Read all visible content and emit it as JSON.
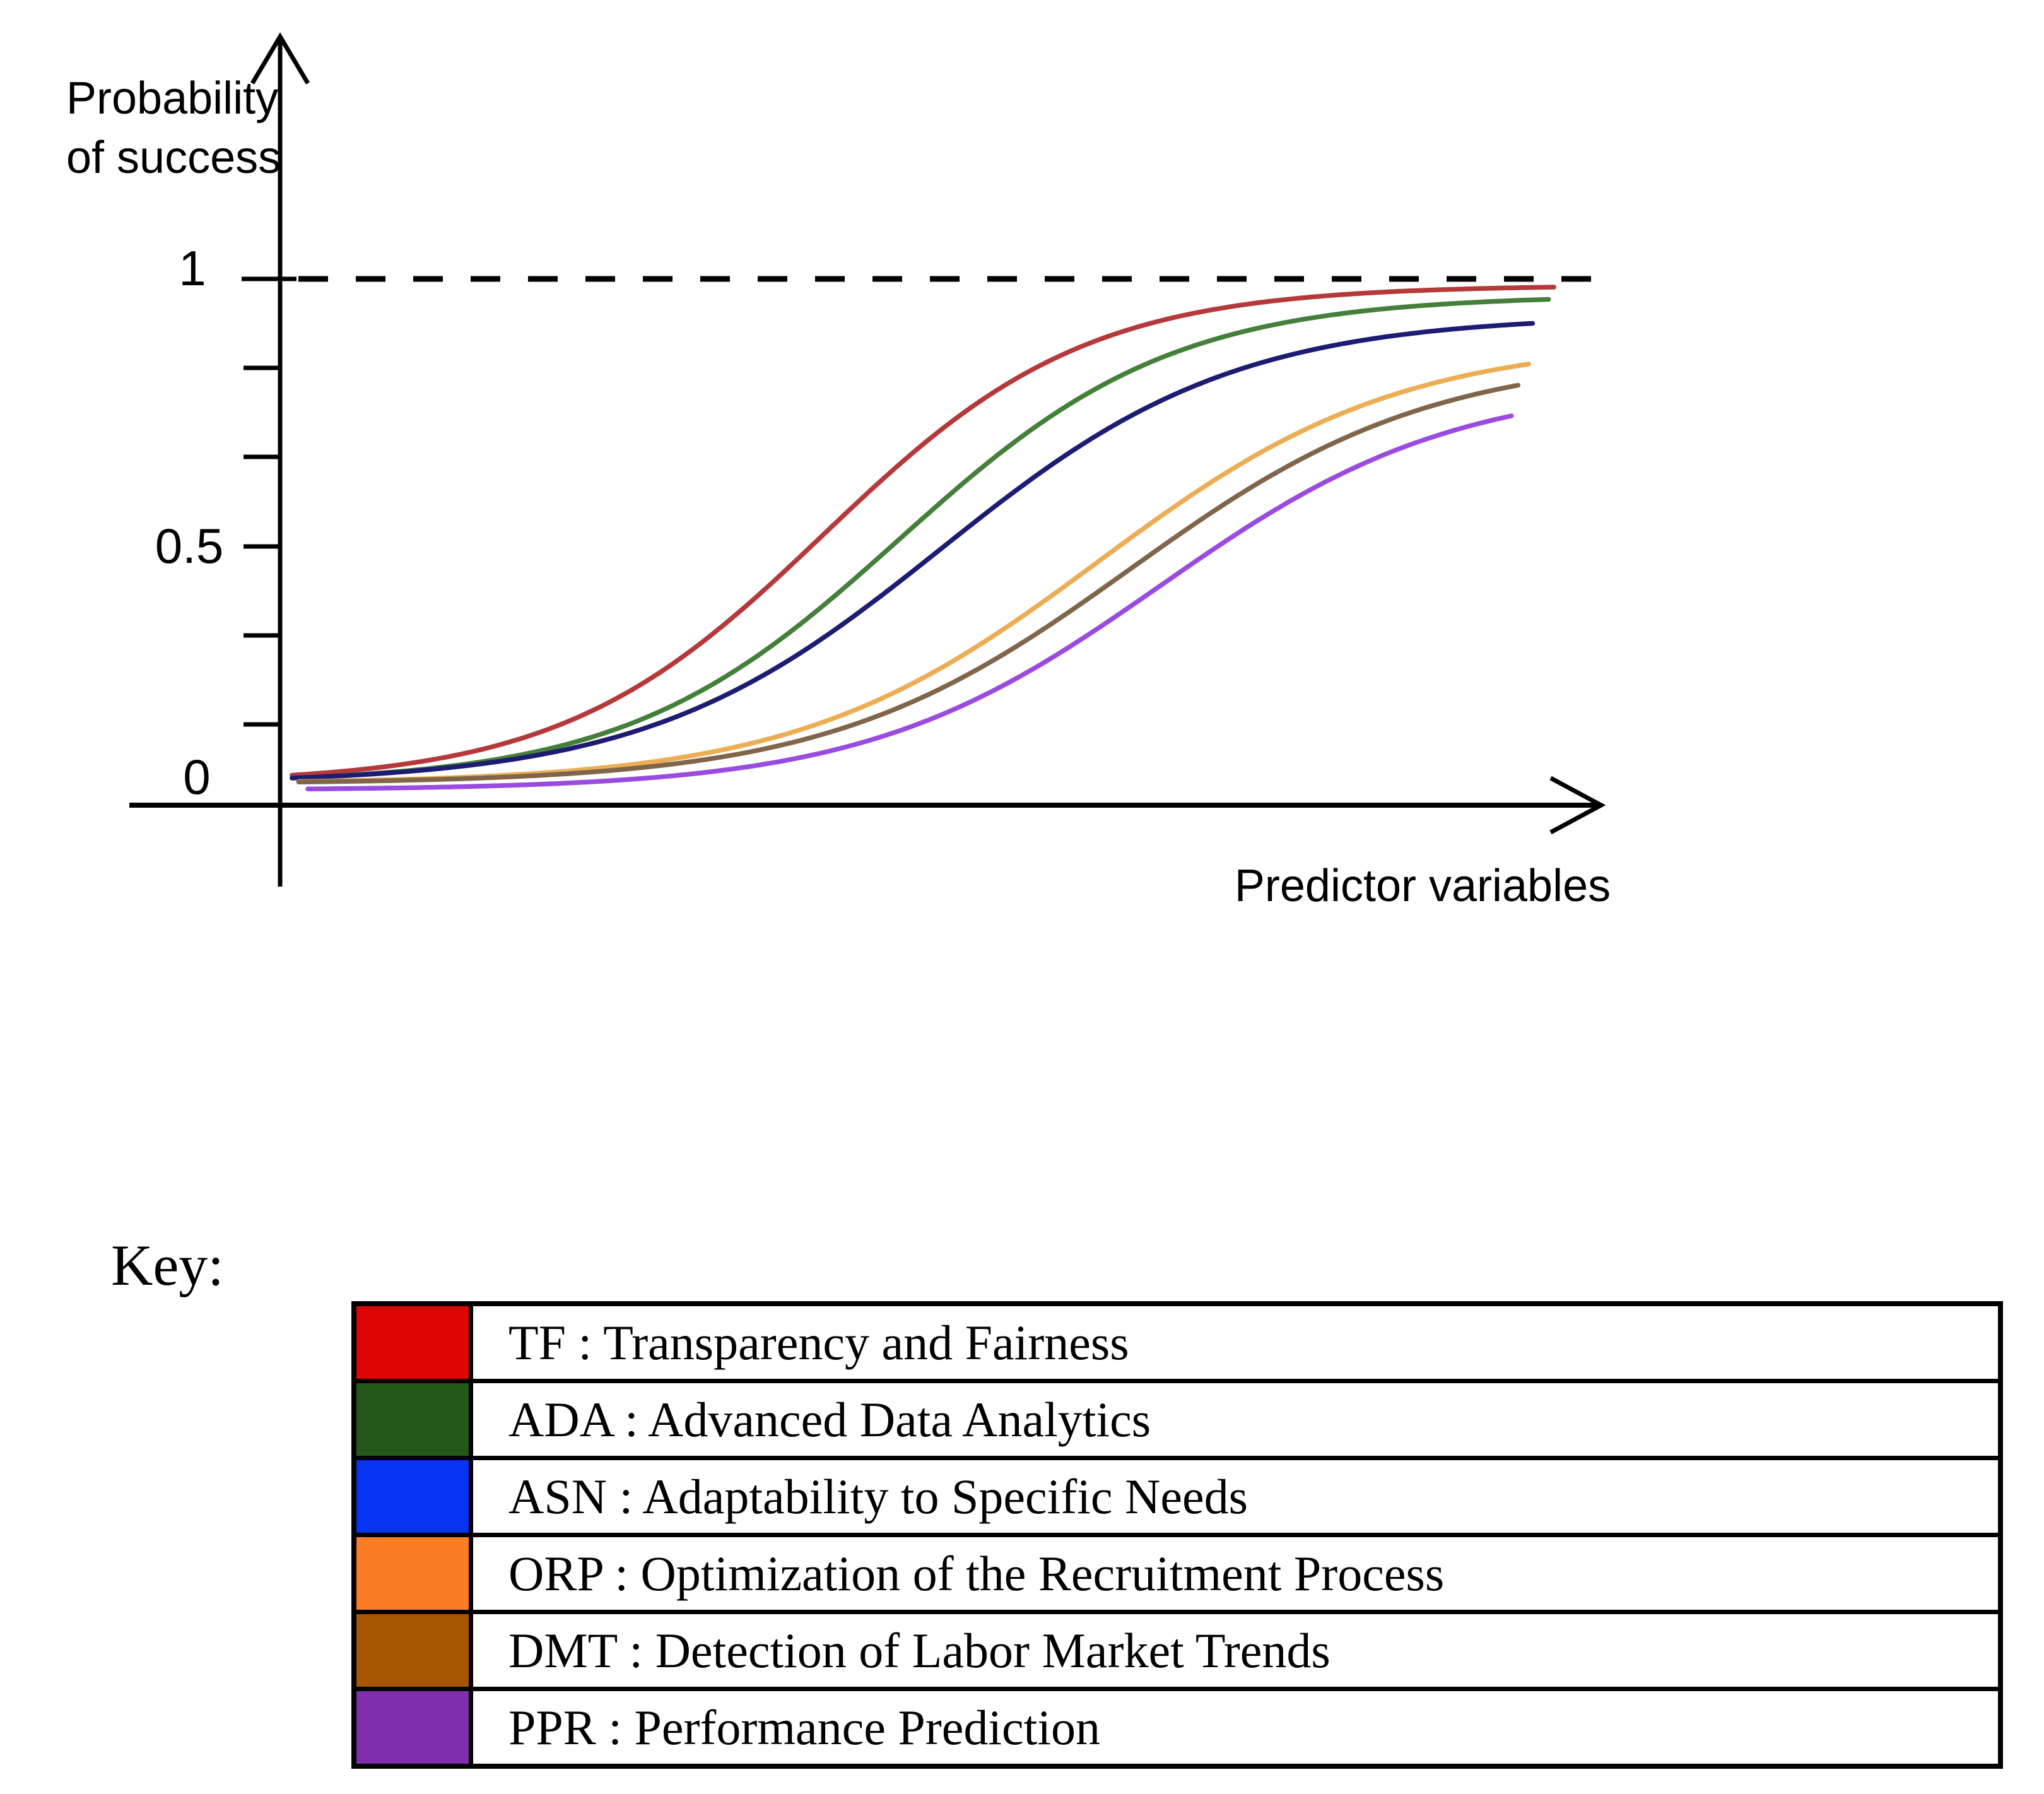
{
  "chart": {
    "ylabel_line1": "Probability",
    "ylabel_line2": "of success",
    "xlabel": "Predictor variables",
    "ytick_top": "1",
    "ytick_mid": "0.5",
    "ytick_zero": "0"
  },
  "chart_data": {
    "type": "line",
    "title": "",
    "xlabel": "Predictor variables",
    "ylabel": "Probability of success",
    "ylim": [
      0,
      1
    ],
    "yticks_labeled": [
      0,
      0.5,
      1
    ],
    "x_axis_note": "conceptual unlabeled axis, relative scale 0 to 1",
    "dashed_asymptote_y": 1,
    "grid": false,
    "legend_position": "key table below figure",
    "series": [
      {
        "name": "TF",
        "label": "Transparency and Fairness",
        "line_color": "#b5393b",
        "shape": "logistic",
        "midpoint": 0.41,
        "steepness": 10.1,
        "max_value": 1.0,
        "y_offset": 0,
        "t_start": 0.009,
        "t_end": 0.964,
        "end_value": 0.99
      },
      {
        "name": "ADA",
        "label": "Advanced Data Analytics",
        "line_color": "#44803a",
        "shape": "logistic",
        "midpoint": 0.467,
        "steepness": 9.7,
        "max_value": 0.98,
        "y_offset": 0,
        "t_start": 0.009,
        "t_end": 0.958,
        "end_value": 0.96
      },
      {
        "name": "ASN",
        "label": "Adaptability to Specific Needs",
        "line_color": "#1c1c73",
        "shape": "logistic",
        "midpoint": 0.498,
        "steepness": 9.0,
        "max_value": 0.94,
        "y_offset": 0,
        "t_start": 0.009,
        "t_end": 0.947,
        "end_value": 0.92
      },
      {
        "name": "ORP",
        "label": "Optimization of the Recruitment Process",
        "line_color": "#ecae55",
        "shape": "logistic",
        "midpoint": 0.617,
        "steepness": 8.8,
        "max_value": 0.89,
        "y_offset": 0,
        "t_start": 0.014,
        "t_end": 0.945,
        "end_value": 0.84
      },
      {
        "name": "DMT",
        "label": "Detection of Labor Market Trends",
        "line_color": "#80654a",
        "shape": "logistic",
        "midpoint": 0.641,
        "steepness": 8.8,
        "max_value": 0.86,
        "y_offset": 0,
        "t_start": 0.014,
        "t_end": 0.938,
        "end_value": 0.8
      },
      {
        "name": "PPR",
        "label": "Performance Prediction",
        "line_color": "#9a4be0",
        "shape": "logistic",
        "midpoint": 0.664,
        "steepness": 9.0,
        "max_value": 0.82,
        "y_offset": -0.013,
        "t_start": 0.021,
        "t_end": 0.931,
        "end_value": 0.74
      }
    ]
  },
  "key": {
    "title": "Key:",
    "rows": [
      {
        "abbr": "TF",
        "label": "TF : Transparency and Fairness",
        "color": "#dd0505"
      },
      {
        "abbr": "ADA",
        "label": "ADA : Advanced Data Analytics",
        "color": "#245818"
      },
      {
        "abbr": "ASN",
        "label": "ASN : Adaptability to Specific Needs",
        "color": "#0634f2"
      },
      {
        "abbr": "ORP",
        "label": "ORP : Optimization of the Recruitment Process",
        "color": "#fb7e26"
      },
      {
        "abbr": "DMT",
        "label": "DMT : Detection of Labor Market Trends",
        "color": "#a85502"
      },
      {
        "abbr": "PPR",
        "label": "PPR : Performance Prediction",
        "color": "#7e2fab"
      }
    ]
  }
}
